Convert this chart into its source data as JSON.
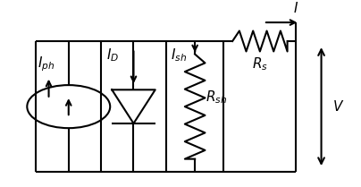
{
  "bg_color": "#ffffff",
  "line_color": "#000000",
  "line_width": 1.5,
  "fig_width": 4.04,
  "fig_height": 2.09,
  "dpi": 100,
  "layout": {
    "L": 0.1,
    "R": 0.82,
    "T": 0.78,
    "B": 0.08,
    "col1": 0.28,
    "col2": 0.46,
    "col3": 0.62
  },
  "labels": {
    "Iph": "$I_{ph}$",
    "ID": "$I_D$",
    "Ish": "$I_{sh}$",
    "Rs": "$R_s$",
    "Rsh": "$R_{sh}$",
    "I": "$I$",
    "V": "$V$"
  },
  "fontsize": 11
}
